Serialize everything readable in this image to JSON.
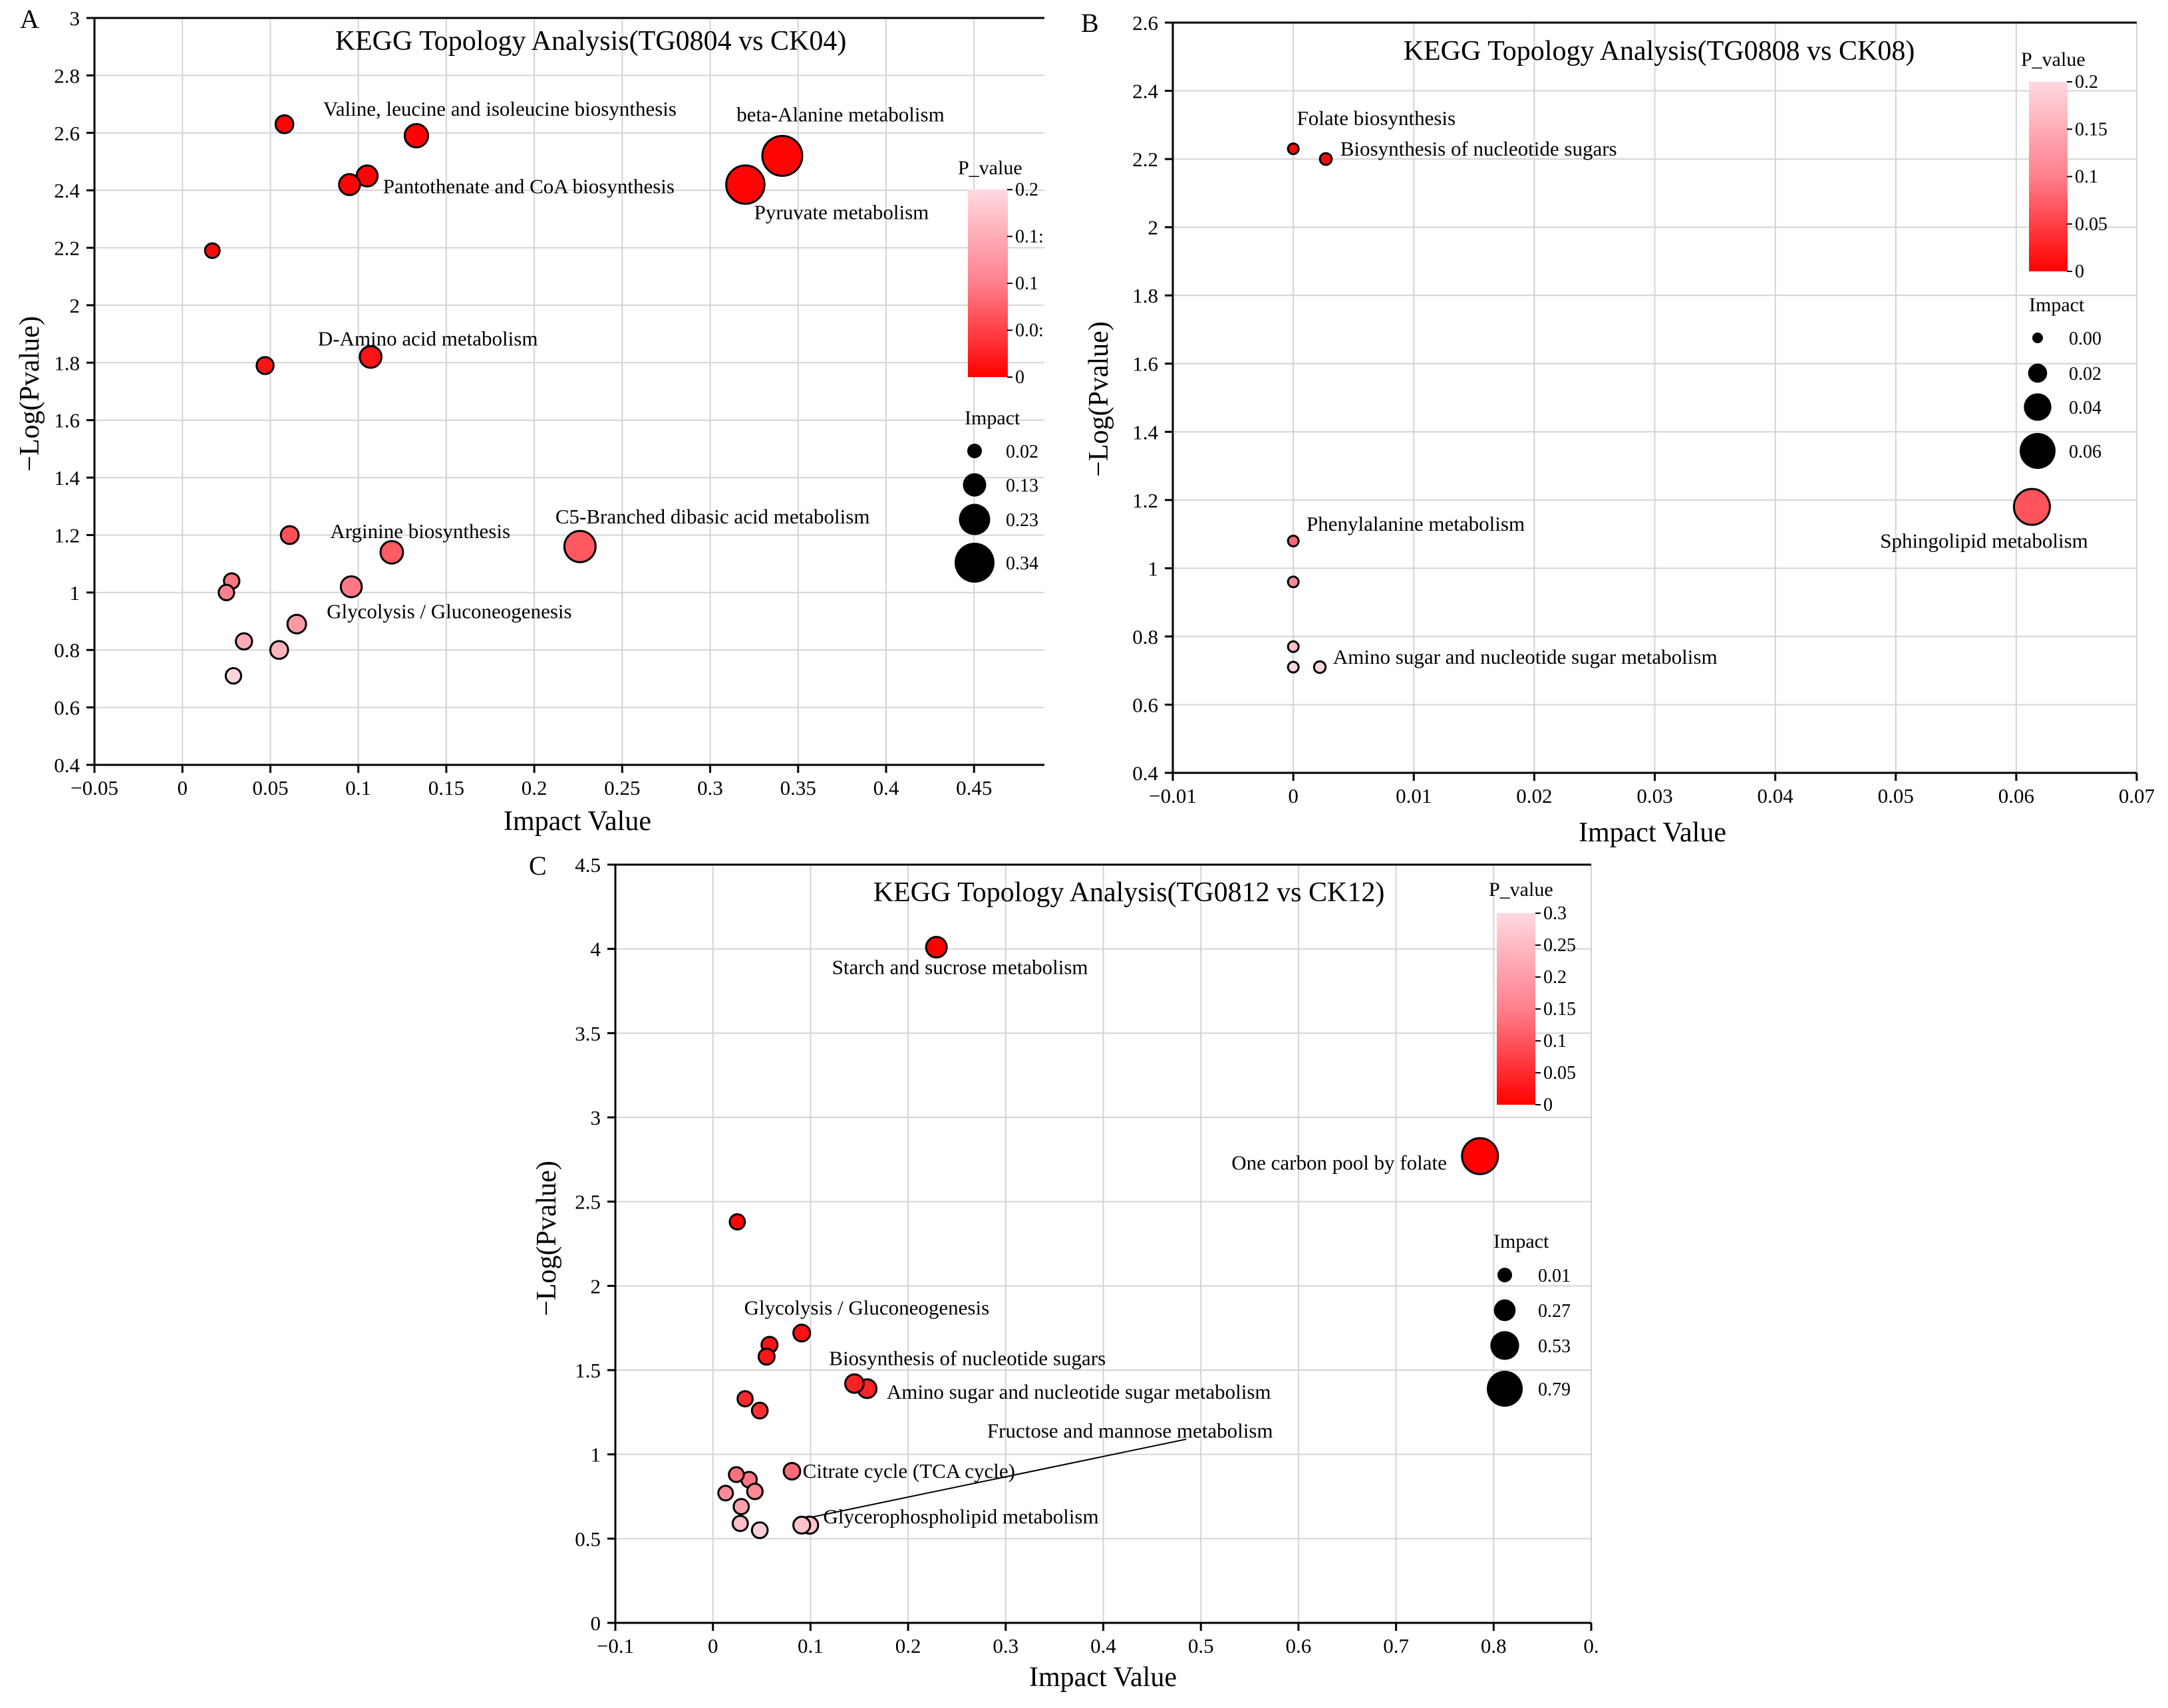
{
  "chart_data": [
    {
      "panel": "A",
      "type": "scatter",
      "title": "KEGG Topology Analysis(TG0804 vs CK04)",
      "xlabel": "Impact Value",
      "ylabel": "−Log(Pvalue)",
      "xlim": [
        -0.05,
        0.49
      ],
      "ylim": [
        0.4,
        3.0
      ],
      "xticks": [
        -0.05,
        0,
        0.05,
        0.1,
        0.15,
        0.2,
        0.25,
        0.3,
        0.35,
        0.4,
        0.45
      ],
      "xtick_labels": [
        "−0.05",
        "0",
        "0.05",
        "0.1",
        "0.15",
        "0.2",
        "0.25",
        "0.3",
        "0.35",
        "0.4",
        "0.45"
      ],
      "yticks": [
        0.4,
        0.6,
        0.8,
        1.0,
        1.2,
        1.4,
        1.6,
        1.8,
        2.0,
        2.2,
        2.4,
        2.6,
        2.8,
        3.0
      ],
      "ytick_labels": [
        "0.4",
        "0.6",
        "0.8",
        "1",
        "1.2",
        "1.4",
        "1.6",
        "1.8",
        "2",
        "2.2",
        "2.4",
        "2.6",
        "2.8",
        "3"
      ],
      "grid": true,
      "points": [
        {
          "x": 0.058,
          "y": 2.63,
          "impact": 0.06,
          "p": 0.0023
        },
        {
          "x": 0.133,
          "y": 2.59,
          "impact": 0.13,
          "p": 0.0026
        },
        {
          "x": 0.341,
          "y": 2.52,
          "impact": 0.34,
          "p": 0.003
        },
        {
          "x": 0.105,
          "y": 2.45,
          "impact": 0.1,
          "p": 0.0035
        },
        {
          "x": 0.095,
          "y": 2.42,
          "impact": 0.1,
          "p": 0.0038
        },
        {
          "x": 0.32,
          "y": 2.42,
          "impact": 0.32,
          "p": 0.0038
        },
        {
          "x": 0.017,
          "y": 2.19,
          "impact": 0.02,
          "p": 0.0065
        },
        {
          "x": 0.047,
          "y": 1.79,
          "impact": 0.05,
          "p": 0.016
        },
        {
          "x": 0.107,
          "y": 1.82,
          "impact": 0.11,
          "p": 0.015
        },
        {
          "x": 0.061,
          "y": 1.2,
          "impact": 0.06,
          "p": 0.063
        },
        {
          "x": 0.119,
          "y": 1.14,
          "impact": 0.12,
          "p": 0.072
        },
        {
          "x": 0.226,
          "y": 1.16,
          "impact": 0.23,
          "p": 0.069
        },
        {
          "x": 0.028,
          "y": 1.04,
          "impact": 0.03,
          "p": 0.091
        },
        {
          "x": 0.025,
          "y": 1.0,
          "impact": 0.03,
          "p": 0.1
        },
        {
          "x": 0.096,
          "y": 1.02,
          "impact": 0.1,
          "p": 0.095
        },
        {
          "x": 0.065,
          "y": 0.89,
          "impact": 0.07,
          "p": 0.129
        },
        {
          "x": 0.035,
          "y": 0.83,
          "impact": 0.04,
          "p": 0.148
        },
        {
          "x": 0.055,
          "y": 0.8,
          "impact": 0.06,
          "p": 0.158
        },
        {
          "x": 0.029,
          "y": 0.71,
          "impact": 0.03,
          "p": 0.195
        }
      ],
      "annotations": [
        {
          "text": "Valine, leucine and isoleucine biosynthesis",
          "x": 0.08,
          "y": 2.66
        },
        {
          "text": "beta-Alanine metabolism",
          "x": 0.315,
          "y": 2.64
        },
        {
          "text": "Pantothenate and CoA biosynthesis",
          "x": 0.114,
          "y": 2.39
        },
        {
          "text": "Pyruvate metabolism",
          "x": 0.325,
          "y": 2.3
        },
        {
          "text": "D-Amino acid metabolism",
          "x": 0.077,
          "y": 1.86
        },
        {
          "text": "Arginine biosynthesis",
          "x": 0.084,
          "y": 1.19
        },
        {
          "text": "C5-Branched dibasic acid metabolism",
          "x": 0.212,
          "y": 1.24
        },
        {
          "text": "Glycolysis / Gluconeogenesis",
          "x": 0.082,
          "y": 0.91
        }
      ],
      "legend_pvalue": {
        "title": "P_value",
        "range": [
          0,
          0.2
        ],
        "tick_labels": [
          "0.2",
          "0.1:",
          "0.1",
          "0.0:",
          "0"
        ]
      },
      "legend_impact": {
        "title": "Impact",
        "values": [
          0.02,
          0.13,
          0.23,
          0.34
        ],
        "labels": [
          "0.02",
          "0.13",
          "0.23",
          "0.34"
        ]
      }
    },
    {
      "panel": "B",
      "type": "scatter",
      "title": "KEGG Topology Analysis(TG0808 vs CK08)",
      "xlabel": "Impact Value",
      "ylabel": "−Log(Pvalue)",
      "xlim": [
        -0.01,
        0.07
      ],
      "ylim": [
        0.4,
        2.6
      ],
      "xticks": [
        -0.01,
        0,
        0.01,
        0.02,
        0.03,
        0.04,
        0.05,
        0.06,
        0.07
      ],
      "xtick_labels": [
        "−0.01",
        "0",
        "0.01",
        "0.02",
        "0.03",
        "0.04",
        "0.05",
        "0.06",
        "0.07"
      ],
      "yticks": [
        0.4,
        0.6,
        0.8,
        1.0,
        1.2,
        1.4,
        1.6,
        1.8,
        2.0,
        2.2,
        2.4,
        2.6
      ],
      "ytick_labels": [
        "0.4",
        "0.6",
        "0.8",
        "1",
        "1.2",
        "1.4",
        "1.6",
        "1.8",
        "2",
        "2.2",
        "2.4",
        "2.6"
      ],
      "grid": true,
      "points": [
        {
          "x": 0.0,
          "y": 2.23,
          "impact": 0.0,
          "p": 0.0059
        },
        {
          "x": 0.0027,
          "y": 2.2,
          "impact": 0.0027,
          "p": 0.0063
        },
        {
          "x": 0.0,
          "y": 1.08,
          "impact": 0.0,
          "p": 0.083
        },
        {
          "x": 0.0,
          "y": 0.96,
          "impact": 0.0,
          "p": 0.11
        },
        {
          "x": 0.0,
          "y": 0.77,
          "impact": 0.0,
          "p": 0.17
        },
        {
          "x": 0.0,
          "y": 0.71,
          "impact": 0.0,
          "p": 0.195
        },
        {
          "x": 0.0022,
          "y": 0.71,
          "impact": 0.0022,
          "p": 0.195
        },
        {
          "x": 0.0613,
          "y": 1.18,
          "impact": 0.0613,
          "p": 0.066
        }
      ],
      "annotations": [
        {
          "text": "Folate biosynthesis",
          "x": 0.0003,
          "y": 2.3
        },
        {
          "text": "Biosynthesis of nucleotide sugars",
          "x": 0.0039,
          "y": 2.21
        },
        {
          "text": "Phenylalanine metabolism",
          "x": 0.0011,
          "y": 1.11
        },
        {
          "text": "Amino sugar and nucleotide sugar metabolism",
          "x": 0.0033,
          "y": 0.72
        },
        {
          "text": "Sphingolipid metabolism",
          "x": 0.0487,
          "y": 1.06
        }
      ],
      "legend_pvalue": {
        "title": "P_value",
        "range": [
          0,
          0.2
        ],
        "tick_labels": [
          "0.2",
          "0.15",
          "0.1",
          "0.05",
          "0"
        ]
      },
      "legend_impact": {
        "title": "Impact",
        "values": [
          0.0,
          0.02,
          0.04,
          0.06
        ],
        "labels": [
          "0.00",
          "0.02",
          "0.04",
          "0.06"
        ]
      }
    },
    {
      "panel": "C",
      "type": "scatter",
      "title": "KEGG Topology Analysis(TG0812 vs CK12)",
      "xlabel": "Impact Value",
      "ylabel": "−Log(Pvalue)",
      "xlim": [
        -0.1,
        0.9
      ],
      "ylim": [
        0,
        4.5
      ],
      "xticks": [
        -0.1,
        0,
        0.1,
        0.2,
        0.3,
        0.4,
        0.5,
        0.6,
        0.7,
        0.8,
        0.9
      ],
      "xtick_labels": [
        "−0.1",
        "0",
        "0.1",
        "0.2",
        "0.3",
        "0.4",
        "0.5",
        "0.6",
        "0.7",
        "0.8",
        "0."
      ],
      "yticks": [
        0,
        0.5,
        1.0,
        1.5,
        2.0,
        2.5,
        3.0,
        3.5,
        4.0,
        4.5
      ],
      "ytick_labels": [
        "0",
        "0.5",
        "1",
        "1.5",
        "2",
        "2.5",
        "3",
        "3.5",
        "4",
        "4.5"
      ],
      "grid": true,
      "points": [
        {
          "x": 0.229,
          "y": 4.01,
          "impact": 0.23,
          "p": 0.0001
        },
        {
          "x": 0.786,
          "y": 2.77,
          "impact": 0.79,
          "p": 0.0017
        },
        {
          "x": 0.025,
          "y": 2.38,
          "impact": 0.03,
          "p": 0.0042
        },
        {
          "x": 0.091,
          "y": 1.72,
          "impact": 0.09,
          "p": 0.019
        },
        {
          "x": 0.058,
          "y": 1.65,
          "impact": 0.06,
          "p": 0.022
        },
        {
          "x": 0.055,
          "y": 1.58,
          "impact": 0.06,
          "p": 0.026
        },
        {
          "x": 0.145,
          "y": 1.42,
          "impact": 0.15,
          "p": 0.038
        },
        {
          "x": 0.158,
          "y": 1.39,
          "impact": 0.16,
          "p": 0.041
        },
        {
          "x": 0.033,
          "y": 1.33,
          "impact": 0.03,
          "p": 0.047
        },
        {
          "x": 0.048,
          "y": 1.26,
          "impact": 0.05,
          "p": 0.055
        },
        {
          "x": 0.081,
          "y": 0.9,
          "impact": 0.08,
          "p": 0.126
        },
        {
          "x": 0.024,
          "y": 0.88,
          "impact": 0.02,
          "p": 0.132
        },
        {
          "x": 0.037,
          "y": 0.85,
          "impact": 0.04,
          "p": 0.141
        },
        {
          "x": 0.043,
          "y": 0.78,
          "impact": 0.04,
          "p": 0.166
        },
        {
          "x": 0.013,
          "y": 0.77,
          "impact": 0.01,
          "p": 0.17
        },
        {
          "x": 0.029,
          "y": 0.69,
          "impact": 0.03,
          "p": 0.204
        },
        {
          "x": 0.028,
          "y": 0.59,
          "impact": 0.03,
          "p": 0.257
        },
        {
          "x": 0.048,
          "y": 0.55,
          "impact": 0.05,
          "p": 0.282
        },
        {
          "x": 0.091,
          "y": 0.58,
          "impact": 0.09,
          "p": 0.263
        },
        {
          "x": 0.099,
          "y": 0.58,
          "impact": 0.1,
          "p": 0.263
        }
      ],
      "annotations": [
        {
          "text": "Starch and sucrose metabolism",
          "x": 0.122,
          "y": 3.85
        },
        {
          "text": "One carbon pool by folate",
          "x": 0.752,
          "y": 2.69
        },
        {
          "text": "Glycolysis / Gluconeogenesis",
          "x": 0.032,
          "y": 1.83
        },
        {
          "text": "Biosynthesis of nucleotide sugars",
          "x": 0.119,
          "y": 1.53
        },
        {
          "text": "Amino sugar and nucleotide sugar metabolism",
          "x": 0.178,
          "y": 1.33
        },
        {
          "text": "Fructose and mannose metabolism",
          "x": 0.281,
          "y": 1.1
        },
        {
          "text": "Citrate cycle (TCA cycle)",
          "x": 0.092,
          "y": 0.86
        },
        {
          "text": "Glycerophospholipid metabolism",
          "x": 0.113,
          "y": 0.59
        }
      ],
      "leader_line": {
        "from": [
          0.095,
          0.62
        ],
        "to": [
          0.485,
          1.09
        ]
      },
      "legend_pvalue": {
        "title": "P_value",
        "range": [
          0,
          0.3
        ],
        "tick_labels": [
          "0.3",
          "0.25",
          "0.2",
          "0.15",
          "0.1",
          "0.05",
          "0"
        ]
      },
      "legend_impact": {
        "title": "Impact",
        "values": [
          0.01,
          0.27,
          0.53,
          0.79
        ],
        "labels": [
          "0.01",
          "0.27",
          "0.53",
          "0.79"
        ]
      }
    }
  ]
}
